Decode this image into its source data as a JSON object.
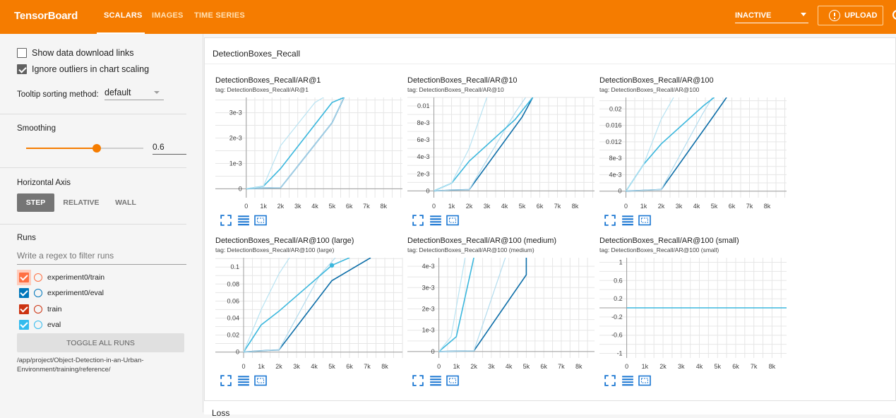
{
  "app": {
    "title": "TensorBoard",
    "nav_tabs": [
      {
        "label": "SCALARS",
        "active": true
      },
      {
        "label": "IMAGES",
        "active": false
      },
      {
        "label": "TIME SERIES",
        "active": false
      }
    ],
    "status_select": "INACTIVE",
    "upload_label": "UPLOAD"
  },
  "colors": {
    "brand": "#f57c00",
    "run_experiment0_train": "#ff7043",
    "run_experiment0_eval": "#0077bb",
    "run_train": "#cc3311",
    "run_eval": "#33bbee"
  },
  "sidebar": {
    "show_download_links": {
      "label": "Show data download links",
      "checked": false
    },
    "ignore_outliers": {
      "label": "Ignore outliers in chart scaling",
      "checked": true
    },
    "tooltip_sorting": {
      "label": "Tooltip sorting method:",
      "value": "default"
    },
    "smoothing": {
      "label": "Smoothing",
      "value": "0.6",
      "fraction": 0.6
    },
    "horizontal_axis": {
      "label": "Horizontal Axis",
      "options": [
        "STEP",
        "RELATIVE",
        "WALL"
      ],
      "selected": "STEP"
    },
    "runs": {
      "label": "Runs",
      "filter_placeholder": "Write a regex to filter runs",
      "items": [
        {
          "name": "experiment0/train",
          "checked": true,
          "color": "#ff7043"
        },
        {
          "name": "experiment0/eval",
          "checked": true,
          "color": "#0077bb"
        },
        {
          "name": "train",
          "checked": true,
          "color": "#cc3311"
        },
        {
          "name": "eval",
          "checked": true,
          "color": "#33bbee"
        }
      ],
      "toggle_label": "TOGGLE ALL RUNS",
      "logdir": "/app/project/Object-Detection-in-an-Urban-Environment/training/reference/"
    }
  },
  "main": {
    "group_title": "DetectionBoxes_Recall",
    "next_group_title": "Loss",
    "chart_data": [
      {
        "type": "line",
        "title": "DetectionBoxes_Recall/AR@1",
        "tag": "tag: DetectionBoxes_Recall/AR@1",
        "x_ticks": [
          "0",
          "1k",
          "2k",
          "3k",
          "4k",
          "5k",
          "6k",
          "7k",
          "8k"
        ],
        "y_ticks": [
          {
            "v": 0,
            "l": "0"
          },
          {
            "v": 0.001,
            "l": "1e-3"
          },
          {
            "v": 0.002,
            "l": "2e-3"
          },
          {
            "v": 0.003,
            "l": "3e-3"
          }
        ],
        "xlim": [
          -1800,
          9100
        ],
        "ylim": [
          -0.00035,
          0.0036
        ],
        "grid": true,
        "series": [
          {
            "x": [
              0,
              1000,
              2000,
              5000,
              5700
            ],
            "y": [
              0,
              3e-05,
              4e-05,
              0.0026,
              0.0036
            ],
            "color": "#0d6ea8",
            "width": 1.6
          },
          {
            "x": [
              0,
              1000,
              2000,
              5000,
              5700
            ],
            "y": [
              0,
              3e-05,
              4e-05,
              0.0026,
              0.0036
            ],
            "color": "#b3dcee",
            "width": 1.2
          },
          {
            "x": [
              0,
              1000,
              2000,
              5000,
              5700
            ],
            "y": [
              0,
              0.0001,
              0.0008,
              0.0034,
              0.0036
            ],
            "color": "#3bb7dd",
            "width": 1.6
          },
          {
            "x": [
              0,
              1000,
              2000,
              4000,
              4500
            ],
            "y": [
              0,
              0.0001,
              0.0017,
              0.0034,
              0.0036
            ],
            "color": "#b8e3f2",
            "width": 1.2
          }
        ]
      },
      {
        "type": "line",
        "title": "DetectionBoxes_Recall/AR@10",
        "tag": "tag: DetectionBoxes_Recall/AR@10",
        "x_ticks": [
          "0",
          "1k",
          "2k",
          "3k",
          "4k",
          "5k",
          "6k",
          "7k",
          "8k"
        ],
        "y_ticks": [
          {
            "v": 0,
            "l": "0"
          },
          {
            "v": 0.002,
            "l": "2e-3"
          },
          {
            "v": 0.004,
            "l": "4e-3"
          },
          {
            "v": 0.006,
            "l": "6e-3"
          },
          {
            "v": 0.008,
            "l": "8e-3"
          },
          {
            "v": 0.01,
            "l": "0.01"
          }
        ],
        "xlim": [
          -1500,
          9100
        ],
        "ylim": [
          -0.0008,
          0.011
        ],
        "grid": true,
        "series": [
          {
            "x": [
              0,
              1000,
              2000,
              5000,
              5600
            ],
            "y": [
              0,
              0.0001,
              0.00015,
              0.0087,
              0.011
            ],
            "color": "#0d6ea8",
            "width": 1.6
          },
          {
            "x": [
              0,
              1000,
              2000,
              4600,
              5200
            ],
            "y": [
              0,
              0.0001,
              0.00015,
              0.0092,
              0.011
            ],
            "color": "#b3dcee",
            "width": 1.2
          },
          {
            "x": [
              0,
              1000,
              2000,
              4600,
              5600
            ],
            "y": [
              0,
              0.0009,
              0.0035,
              0.0084,
              0.011
            ],
            "color": "#3bb7dd",
            "width": 1.6
          },
          {
            "x": [
              0,
              1000,
              2000,
              3000
            ],
            "y": [
              0,
              0.0009,
              0.005,
              0.011
            ],
            "color": "#b8e3f2",
            "width": 1.2
          }
        ]
      },
      {
        "type": "line",
        "title": "DetectionBoxes_Recall/AR@100",
        "tag": "tag: DetectionBoxes_Recall/AR@100",
        "x_ticks": [
          "0",
          "1k",
          "2k",
          "3k",
          "4k",
          "5k",
          "6k",
          "7k",
          "8k"
        ],
        "y_ticks": [
          {
            "v": 0,
            "l": "0"
          },
          {
            "v": 0.004,
            "l": "4e-3"
          },
          {
            "v": 0.008,
            "l": "8e-3"
          },
          {
            "v": 0.012,
            "l": "0.012"
          },
          {
            "v": 0.016,
            "l": "0.016"
          },
          {
            "v": 0.02,
            "l": "0.02"
          }
        ],
        "xlim": [
          -1500,
          9100
        ],
        "ylim": [
          -0.0016,
          0.0228
        ],
        "grid": true,
        "series": [
          {
            "x": [
              0,
              1000,
              2000,
              5000,
              5700
            ],
            "y": [
              0,
              0.0002,
              0.0004,
              0.0185,
              0.0228
            ],
            "color": "#0d6ea8",
            "width": 1.6
          },
          {
            "x": [
              0,
              1000,
              2000,
              4300,
              4900
            ],
            "y": [
              0,
              0.0002,
              0.0004,
              0.0185,
              0.0228
            ],
            "color": "#b3dcee",
            "width": 1.2
          },
          {
            "x": [
              0,
              1000,
              2000,
              4400,
              5000
            ],
            "y": [
              0,
              0.0065,
              0.0115,
              0.0208,
              0.0228
            ],
            "color": "#3bb7dd",
            "width": 1.6
          },
          {
            "x": [
              0,
              1000,
              2000,
              2700
            ],
            "y": [
              0,
              0.0065,
              0.0175,
              0.0228
            ],
            "color": "#b8e3f2",
            "width": 1.2
          }
        ]
      },
      {
        "type": "line",
        "title": "DetectionBoxes_Recall/AR@100 (large)",
        "tag": "tag: DetectionBoxes_Recall/AR@100 (large)",
        "x_ticks": [
          "0",
          "1k",
          "2k",
          "3k",
          "4k",
          "5k",
          "6k",
          "7k",
          "8k"
        ],
        "y_ticks": [
          {
            "v": 0,
            "l": "0"
          },
          {
            "v": 0.02,
            "l": "0.02"
          },
          {
            "v": 0.04,
            "l": "0.04"
          },
          {
            "v": 0.06,
            "l": "0.06"
          },
          {
            "v": 0.08,
            "l": "0.08"
          },
          {
            "v": 0.1,
            "l": "0.1"
          }
        ],
        "xlim": [
          -1600,
          9000
        ],
        "ylim": [
          -0.007,
          0.111
        ],
        "grid": true,
        "series": [
          {
            "x": [
              0,
              1000,
              2000,
              5000,
              7200
            ],
            "y": [
              0,
              0.0015,
              0.0025,
              0.084,
              0.111
            ],
            "color": "#0d6ea8",
            "width": 1.6
          },
          {
            "x": [
              0,
              1000,
              2000,
              4300,
              5200
            ],
            "y": [
              0,
              0.0015,
              0.0025,
              0.09,
              0.111
            ],
            "color": "#b3dcee",
            "width": 1.2
          },
          {
            "x": [
              0,
              1000,
              2000,
              5000,
              6000
            ],
            "y": [
              0,
              0.032,
              0.048,
              0.102,
              0.111
            ],
            "color": "#3bb7dd",
            "width": 1.6
          },
          {
            "x": [
              0,
              1000,
              2000,
              2600
            ],
            "y": [
              0,
              0.05,
              0.092,
              0.111
            ],
            "color": "#b8e3f2",
            "width": 1.2
          }
        ],
        "marker": {
          "x": 5000,
          "y": 0.102,
          "color": "#3bb7dd"
        }
      },
      {
        "type": "line",
        "title": "DetectionBoxes_Recall/AR@100 (medium)",
        "tag": "tag: DetectionBoxes_Recall/AR@100 (medium)",
        "x_ticks": [
          "0",
          "1k",
          "2k",
          "3k",
          "4k",
          "5k",
          "6k",
          "7k",
          "8k"
        ],
        "y_ticks": [
          {
            "v": 0,
            "l": "0"
          },
          {
            "v": 0.001,
            "l": "1e-3"
          },
          {
            "v": 0.002,
            "l": "2e-3"
          },
          {
            "v": 0.003,
            "l": "3e-3"
          },
          {
            "v": 0.004,
            "l": "4e-3"
          }
        ],
        "xlim": [
          -1800,
          8900
        ],
        "ylim": [
          -0.0003,
          0.0044
        ],
        "grid": true,
        "series": [
          {
            "x": [
              0,
              1000,
              2000,
              5000,
              5000
            ],
            "y": [
              0,
              2e-05,
              3e-05,
              0.0036,
              0.0044
            ],
            "color": "#0d6ea8",
            "width": 1.6
          },
          {
            "x": [
              0,
              1000,
              2000,
              3800
            ],
            "y": [
              0,
              2e-05,
              3e-05,
              0.0044
            ],
            "color": "#b3dcee",
            "width": 1.2
          },
          {
            "x": [
              0,
              1000,
              2000
            ],
            "y": [
              0,
              0.0007,
              0.0044
            ],
            "color": "#3bb7dd",
            "width": 1.6
          },
          {
            "x": [
              0,
              700,
              1500
            ],
            "y": [
              0,
              0.0007,
              0.0044
            ],
            "color": "#b8e3f2",
            "width": 1.2
          }
        ]
      },
      {
        "type": "line",
        "title": "DetectionBoxes_Recall/AR@100 (small)",
        "tag": "tag: DetectionBoxes_Recall/AR@100 (small)",
        "x_ticks": [
          "0",
          "1k",
          "2k",
          "3k",
          "4k",
          "5k",
          "6k",
          "7k",
          "8k"
        ],
        "y_ticks": [
          {
            "v": -1,
            "l": "-1"
          },
          {
            "v": -0.6,
            "l": "-0.6"
          },
          {
            "v": -0.2,
            "l": "-0.2"
          },
          {
            "v": 0.2,
            "l": "0.2"
          },
          {
            "v": 0.6,
            "l": "0.6"
          },
          {
            "v": 1,
            "l": "1"
          }
        ],
        "xlim": [
          -1500,
          8800
        ],
        "ylim": [
          -1.1,
          1.1
        ],
        "grid": true,
        "series": [
          {
            "x": [
              0,
              8800
            ],
            "y": [
              0,
              0
            ],
            "color": "#3bb7dd",
            "width": 1.6
          }
        ]
      }
    ]
  }
}
